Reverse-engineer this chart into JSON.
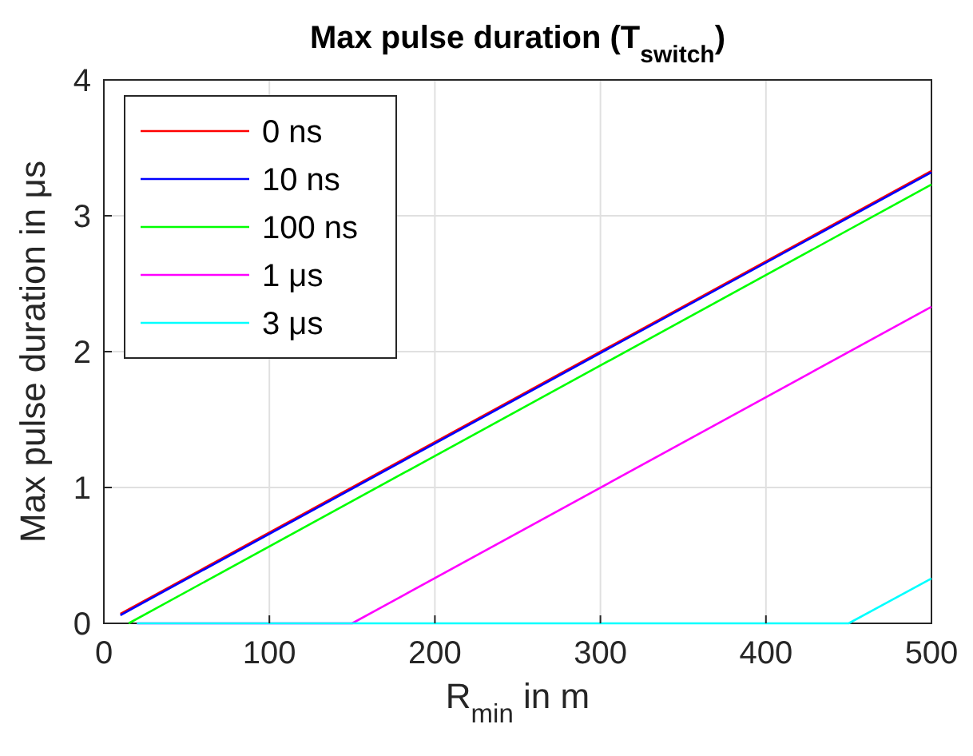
{
  "chart_data": {
    "type": "line",
    "title": "Max pulse duration (T$_{switch}$)",
    "xlabel": "R$_{min}$ in m",
    "ylabel": "Max pulse duration in μs",
    "xlim": [
      0,
      500
    ],
    "xticks": [
      0,
      100,
      200,
      300,
      400,
      500
    ],
    "ylim": [
      0,
      4
    ],
    "yticks": [
      0,
      1,
      2,
      3,
      4
    ],
    "grid": true,
    "legend": "top left",
    "series": [
      {
        "name": "0 ns",
        "color": "#ff0000",
        "x": [
          10,
          500
        ],
        "values": [
          0.07,
          3.33
        ]
      },
      {
        "name": "10 ns",
        "color": "#0000ff",
        "x": [
          10,
          500
        ],
        "values": [
          0.06,
          3.32
        ]
      },
      {
        "name": "100 ns",
        "color": "#00ff00",
        "x": [
          15,
          500
        ],
        "values": [
          0,
          3.23
        ]
      },
      {
        "name": "1 μs",
        "color": "#ff00ff",
        "x": [
          20,
          150,
          500
        ],
        "values": [
          0,
          0,
          2.33
        ]
      },
      {
        "name": "3 μs",
        "color": "#00ffff",
        "x": [
          20,
          450,
          500
        ],
        "values": [
          0,
          0,
          0.33
        ]
      }
    ]
  }
}
